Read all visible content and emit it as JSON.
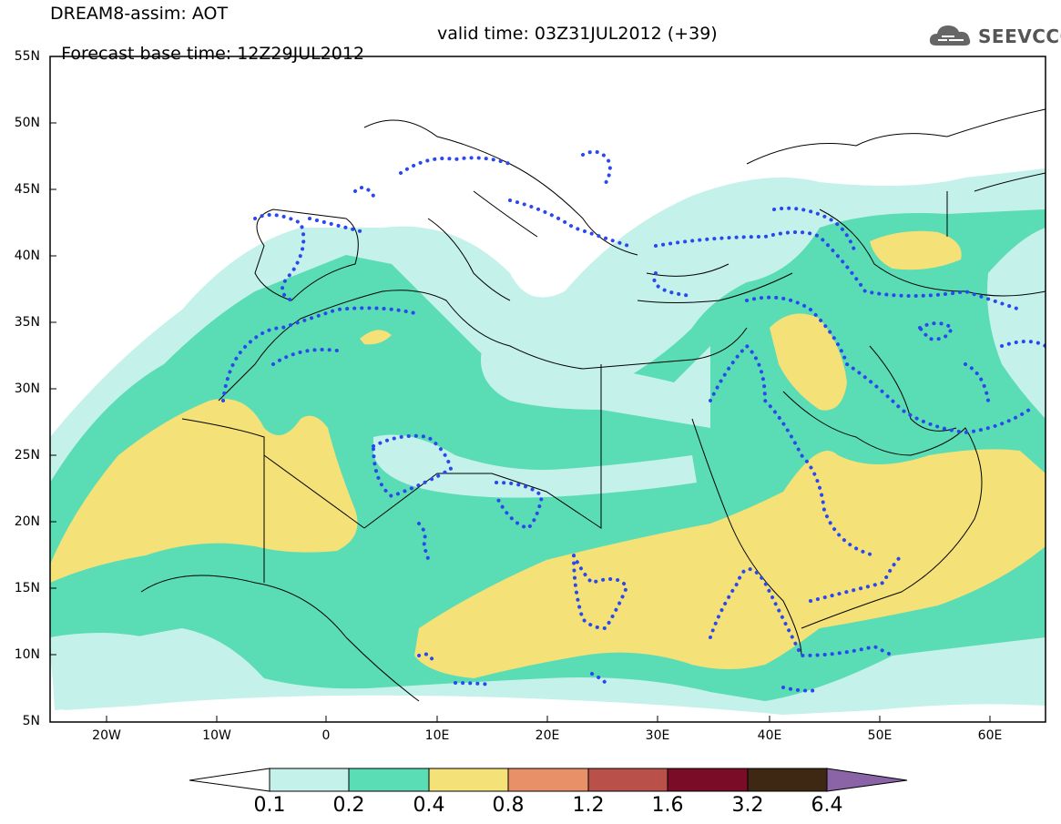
{
  "header": {
    "line1": "DREAM8-assim: AOT",
    "base_time": "Forecast base time: 12Z29JUL2012",
    "valid_time": "valid time: 03Z31JUL2012 (+39)",
    "logo_text": "SEEVCCC"
  },
  "map": {
    "lon_range": [
      -25,
      65
    ],
    "lat_range": [
      5,
      55
    ],
    "lat_labels": [
      "55N",
      "50N",
      "45N",
      "40N",
      "35N",
      "30N",
      "25N",
      "20N",
      "15N",
      "10N",
      "5N"
    ],
    "lon_labels": [
      "20W",
      "10W",
      "0",
      "10E",
      "20E",
      "30E",
      "40E",
      "50E",
      "60E"
    ]
  },
  "legend": {
    "labels": [
      "0.1",
      "0.2",
      "0.4",
      "0.8",
      "1.2",
      "1.6",
      "3.2",
      "6.4"
    ],
    "colors": [
      "#c4f1ea",
      "#5adcb5",
      "#f4e178",
      "#e89068",
      "#b9504a",
      "#7a0c28",
      "#3e2814",
      "#8b64a8"
    ]
  },
  "colors": {
    "contour_dots": "#2a48ee",
    "coastline": "#000000"
  }
}
